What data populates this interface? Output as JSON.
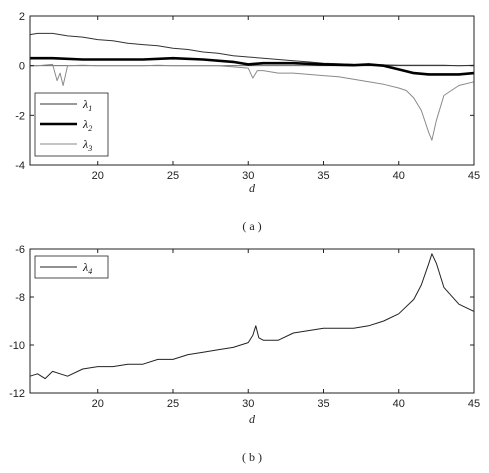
{
  "chart_data": [
    {
      "type": "line",
      "caption": "( a )",
      "xlabel": "d",
      "ylabel": "",
      "xlim": [
        15.5,
        45
      ],
      "ylim": [
        -4,
        2
      ],
      "xticks": [
        "20",
        "25",
        "30",
        "35",
        "40",
        "45"
      ],
      "yticks": [
        "2",
        "0",
        "-2",
        "-4"
      ],
      "legend_position": "bottom-left",
      "series": [
        {
          "name": "λ",
          "subscript": "1",
          "color": "#333333",
          "style": "thin",
          "x": [
            15.5,
            16,
            17,
            18,
            19,
            20,
            21,
            22,
            23,
            24,
            25,
            26,
            27,
            28,
            29,
            30,
            31,
            32,
            33,
            34,
            35,
            36,
            37,
            38,
            39,
            40,
            41,
            42,
            43,
            44,
            45
          ],
          "y": [
            1.25,
            1.3,
            1.3,
            1.2,
            1.15,
            1.05,
            1.0,
            0.9,
            0.85,
            0.8,
            0.7,
            0.65,
            0.55,
            0.5,
            0.4,
            0.35,
            0.3,
            0.25,
            0.2,
            0.15,
            0.1,
            0.08,
            0.05,
            0.04,
            0.03,
            0.02,
            0.02,
            0.02,
            0.02,
            0.0,
            0.02
          ]
        },
        {
          "name": "λ",
          "subscript": "2",
          "color": "#000000",
          "style": "thick",
          "x": [
            15.5,
            17,
            19,
            21,
            23,
            25,
            27,
            29,
            30,
            31,
            33,
            35,
            37,
            38,
            39,
            40,
            41,
            42,
            43,
            44,
            45
          ],
          "y": [
            0.3,
            0.3,
            0.25,
            0.25,
            0.25,
            0.3,
            0.25,
            0.15,
            0.05,
            0.1,
            0.1,
            0.05,
            0.02,
            0.05,
            0.0,
            -0.15,
            -0.3,
            -0.35,
            -0.35,
            -0.35,
            -0.3
          ]
        },
        {
          "name": "λ",
          "subscript": "3",
          "color": "#8a8a8a",
          "style": "thin",
          "x": [
            15.5,
            16,
            17,
            17.3,
            17.5,
            17.7,
            18,
            19,
            20,
            21,
            22,
            23,
            24,
            25,
            26,
            27,
            28,
            29,
            30,
            30.3,
            30.6,
            31,
            32,
            33,
            34,
            35,
            36,
            37,
            38,
            39,
            40,
            40.5,
            41,
            41.5,
            42,
            42.2,
            42.5,
            43,
            44,
            45
          ],
          "y": [
            0.0,
            0.0,
            0.05,
            -0.6,
            -0.3,
            -0.8,
            0.0,
            0.02,
            0.0,
            0.0,
            0.0,
            0.0,
            0.02,
            0.0,
            0.0,
            0.0,
            0.0,
            -0.05,
            -0.1,
            -0.5,
            -0.2,
            -0.2,
            -0.3,
            -0.3,
            -0.35,
            -0.4,
            -0.45,
            -0.55,
            -0.65,
            -0.75,
            -0.9,
            -1.0,
            -1.3,
            -1.8,
            -2.7,
            -3.0,
            -2.2,
            -1.2,
            -0.8,
            -0.65
          ]
        }
      ]
    },
    {
      "type": "line",
      "caption": "( b )",
      "xlabel": "d",
      "ylabel": "",
      "xlim": [
        15.5,
        45
      ],
      "ylim": [
        -12,
        -6
      ],
      "xticks": [
        "20",
        "25",
        "30",
        "35",
        "40",
        "45"
      ],
      "yticks": [
        "-6",
        "-8",
        "-10",
        "-12"
      ],
      "legend_position": "top-left",
      "series": [
        {
          "name": "λ",
          "subscript": "4",
          "color": "#222222",
          "style": "thin",
          "x": [
            15.5,
            16,
            16.5,
            17,
            17.5,
            18,
            19,
            20,
            21,
            22,
            23,
            24,
            25,
            26,
            27,
            28,
            29,
            30,
            30.3,
            30.5,
            30.7,
            31,
            32,
            33,
            34,
            35,
            36,
            37,
            38,
            39,
            40,
            41,
            41.5,
            42,
            42.2,
            42.5,
            43,
            44,
            45
          ],
          "y": [
            -11.3,
            -11.2,
            -11.4,
            -11.1,
            -11.2,
            -11.3,
            -11.0,
            -10.9,
            -10.9,
            -10.8,
            -10.8,
            -10.6,
            -10.6,
            -10.4,
            -10.3,
            -10.2,
            -10.1,
            -9.9,
            -9.6,
            -9.2,
            -9.7,
            -9.8,
            -9.8,
            -9.5,
            -9.4,
            -9.3,
            -9.3,
            -9.3,
            -9.2,
            -9.0,
            -8.7,
            -8.1,
            -7.5,
            -6.6,
            -6.2,
            -6.6,
            -7.6,
            -8.3,
            -8.6
          ]
        }
      ]
    }
  ]
}
